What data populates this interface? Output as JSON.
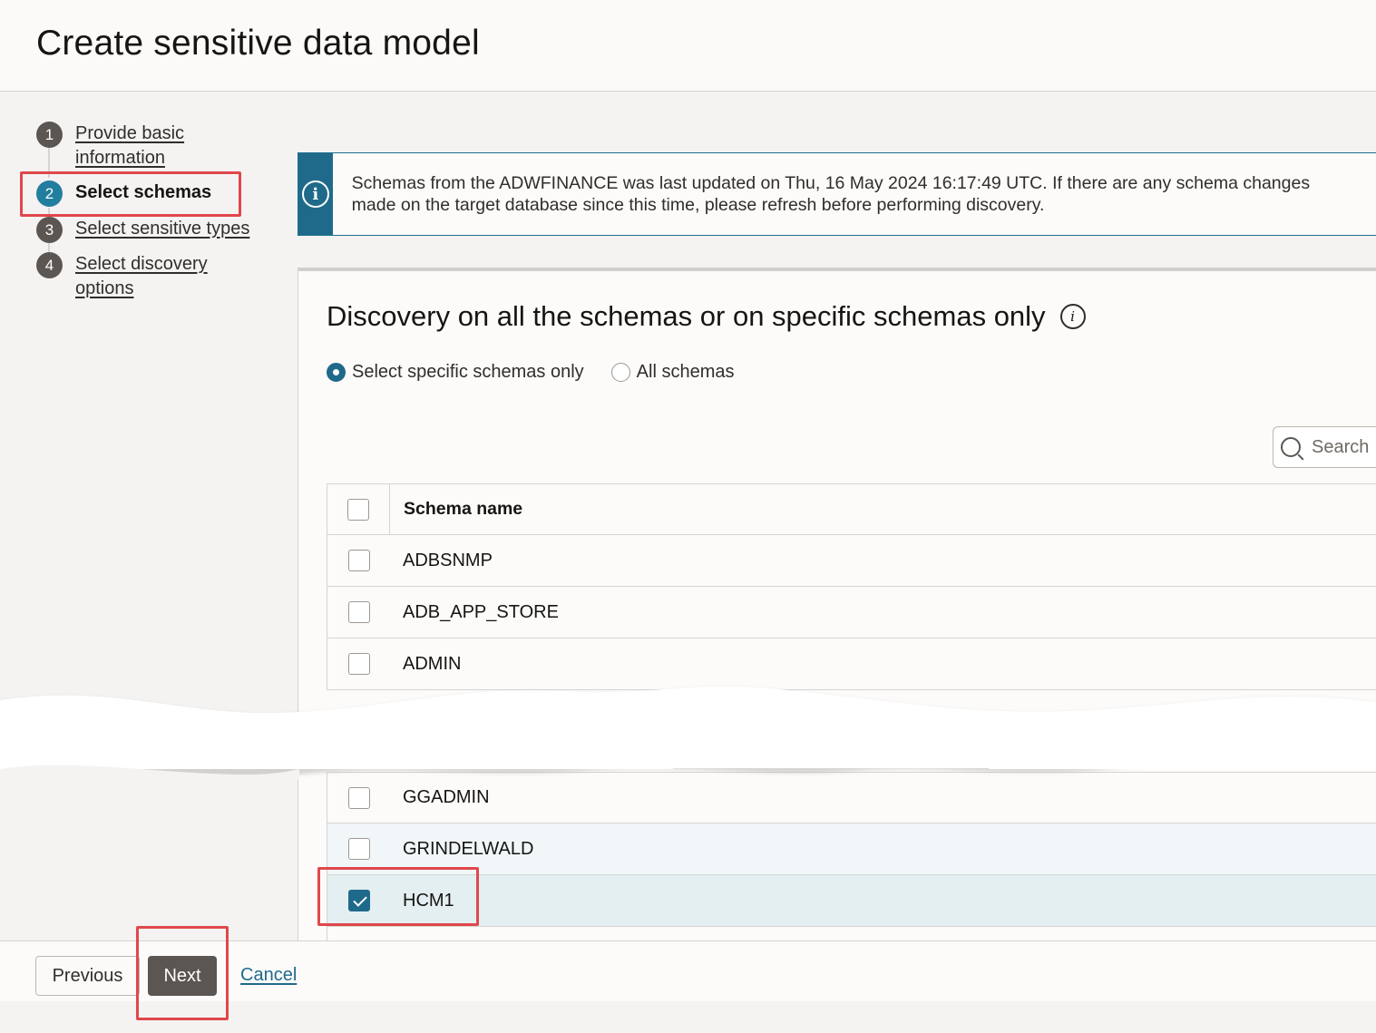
{
  "page": {
    "title": "Create sensitive data model"
  },
  "steps": [
    {
      "number": "1",
      "label": "Provide basic information",
      "active": false
    },
    {
      "number": "2",
      "label": "Select schemas",
      "active": true
    },
    {
      "number": "3",
      "label": "Select sensitive types",
      "active": false
    },
    {
      "number": "4",
      "label": "Select discovery options",
      "active": false
    }
  ],
  "info_banner": {
    "icon": "info-icon",
    "text": "Schemas from the ADWFINANCE was last updated on Thu, 16 May 2024 16:17:49 UTC. If there are any schema changes made on the target database since this time, please refresh before performing discovery."
  },
  "discovery": {
    "title": "Discovery on all the schemas or on specific schemas only",
    "options": [
      {
        "label": "Select specific schemas only",
        "selected": true
      },
      {
        "label": "All schemas",
        "selected": false
      }
    ]
  },
  "search": {
    "placeholder": "Search"
  },
  "table": {
    "header": "Schema name",
    "rows_top": [
      {
        "name": "ADBSNMP",
        "checked": false
      },
      {
        "name": "ADB_APP_STORE",
        "checked": false
      },
      {
        "name": "ADMIN",
        "checked": false
      }
    ],
    "rows_bottom": [
      {
        "name": "GGADMIN",
        "checked": false
      },
      {
        "name": "GRINDELWALD",
        "checked": false
      },
      {
        "name": "HCM1",
        "checked": true
      }
    ]
  },
  "footer": {
    "previous_label": "Previous",
    "next_label": "Next",
    "cancel_label": "Cancel"
  },
  "colors": {
    "accent": "#1f6a8a",
    "annotation": "#e0474c",
    "primary_button": "#5b5652"
  }
}
